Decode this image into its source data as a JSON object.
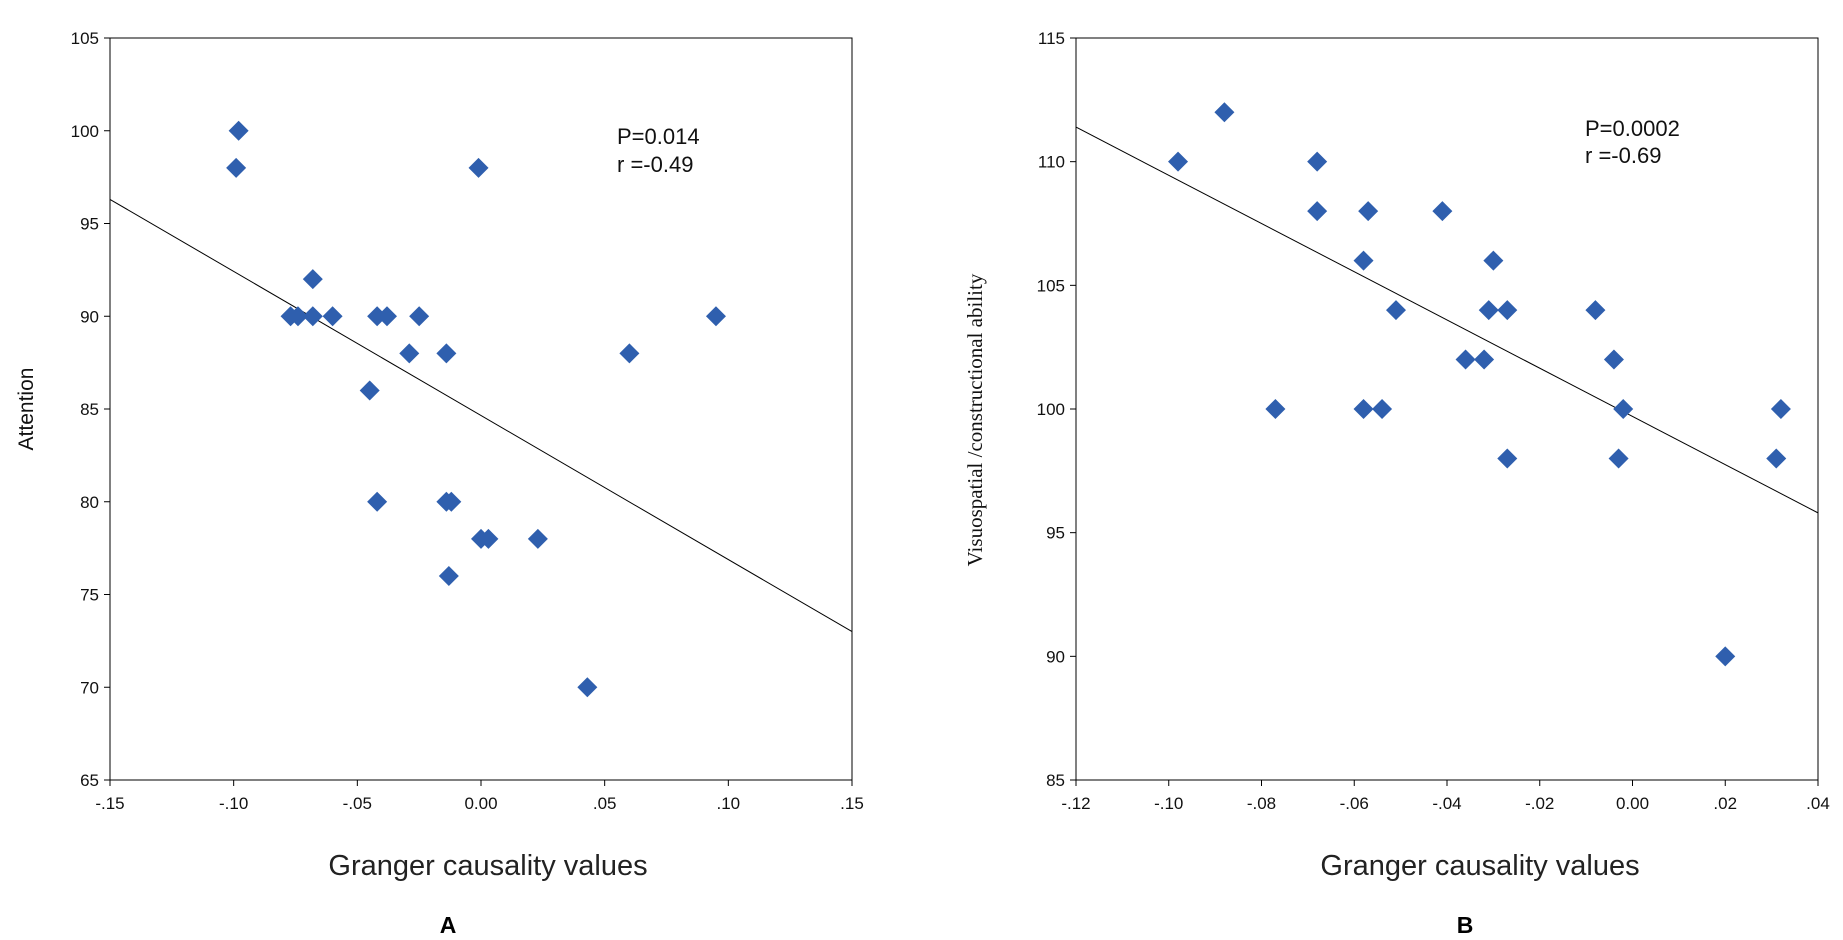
{
  "chart_data": [
    {
      "type": "scatter",
      "panel": "A",
      "xlabel": "Granger causality values",
      "ylabel": "Attention",
      "xlim": [
        -0.15,
        0.15
      ],
      "ylim": [
        65,
        105
      ],
      "xticks": [
        -0.15,
        -0.1,
        -0.05,
        0.0,
        0.05,
        0.1,
        0.15
      ],
      "xtick_labels": [
        "-.15",
        "-.10",
        "-.05",
        "0.00",
        ".05",
        ".10",
        ".15"
      ],
      "yticks": [
        65,
        70,
        75,
        80,
        85,
        90,
        95,
        100,
        105
      ],
      "ytick_labels": [
        "65",
        "70",
        "75",
        "80",
        "85",
        "90",
        "95",
        "100",
        "105"
      ],
      "annotations": [
        "P=0.014",
        "r =-0.49"
      ],
      "points": [
        [
          -0.098,
          100
        ],
        [
          -0.099,
          98
        ],
        [
          -0.068,
          92
        ],
        [
          -0.077,
          90
        ],
        [
          -0.074,
          90
        ],
        [
          -0.068,
          90
        ],
        [
          -0.06,
          90
        ],
        [
          -0.042,
          90
        ],
        [
          -0.038,
          90
        ],
        [
          -0.025,
          90
        ],
        [
          -0.029,
          88
        ],
        [
          -0.014,
          88
        ],
        [
          -0.045,
          86
        ],
        [
          -0.042,
          80
        ],
        [
          -0.014,
          80
        ],
        [
          -0.012,
          80
        ],
        [
          -0.001,
          98
        ],
        [
          0.0,
          78
        ],
        [
          0.003,
          78
        ],
        [
          0.023,
          78
        ],
        [
          -0.013,
          76
        ],
        [
          0.043,
          70
        ],
        [
          0.06,
          88
        ],
        [
          0.095,
          90
        ]
      ],
      "fit_line": [
        [
          -0.15,
          96.3
        ],
        [
          0.15,
          73.0
        ]
      ]
    },
    {
      "type": "scatter",
      "panel": "B",
      "xlabel": "Granger causality values",
      "ylabel": "Visuospatial /constructional ability",
      "xlim": [
        -0.12,
        0.04
      ],
      "ylim": [
        85,
        115
      ],
      "xticks": [
        -0.12,
        -0.1,
        -0.08,
        -0.06,
        -0.04,
        -0.02,
        0.0,
        0.02,
        0.04
      ],
      "xtick_labels": [
        "-.12",
        "-.10",
        "-.08",
        "-.06",
        "-.04",
        "-.02",
        "0.00",
        ".02",
        ".04"
      ],
      "yticks": [
        85,
        90,
        95,
        100,
        105,
        110,
        115
      ],
      "ytick_labels": [
        "85",
        "90",
        "95",
        "100",
        "105",
        "110",
        "115"
      ],
      "annotations": [
        "P=0.0002",
        "r =-0.69"
      ],
      "points": [
        [
          -0.098,
          110
        ],
        [
          -0.088,
          112
        ],
        [
          -0.068,
          110
        ],
        [
          -0.068,
          108
        ],
        [
          -0.057,
          108
        ],
        [
          -0.041,
          108
        ],
        [
          -0.058,
          106
        ],
        [
          -0.03,
          106
        ],
        [
          -0.051,
          104
        ],
        [
          -0.031,
          104
        ],
        [
          -0.027,
          104
        ],
        [
          -0.008,
          104
        ],
        [
          -0.036,
          102
        ],
        [
          -0.032,
          102
        ],
        [
          -0.004,
          102
        ],
        [
          -0.077,
          100
        ],
        [
          -0.058,
          100
        ],
        [
          -0.054,
          100
        ],
        [
          -0.002,
          100
        ],
        [
          0.032,
          100
        ],
        [
          -0.027,
          98
        ],
        [
          -0.003,
          98
        ],
        [
          0.031,
          98
        ],
        [
          0.02,
          90
        ]
      ],
      "fit_line": [
        [
          -0.12,
          111.4
        ],
        [
          0.04,
          95.8
        ]
      ]
    }
  ]
}
